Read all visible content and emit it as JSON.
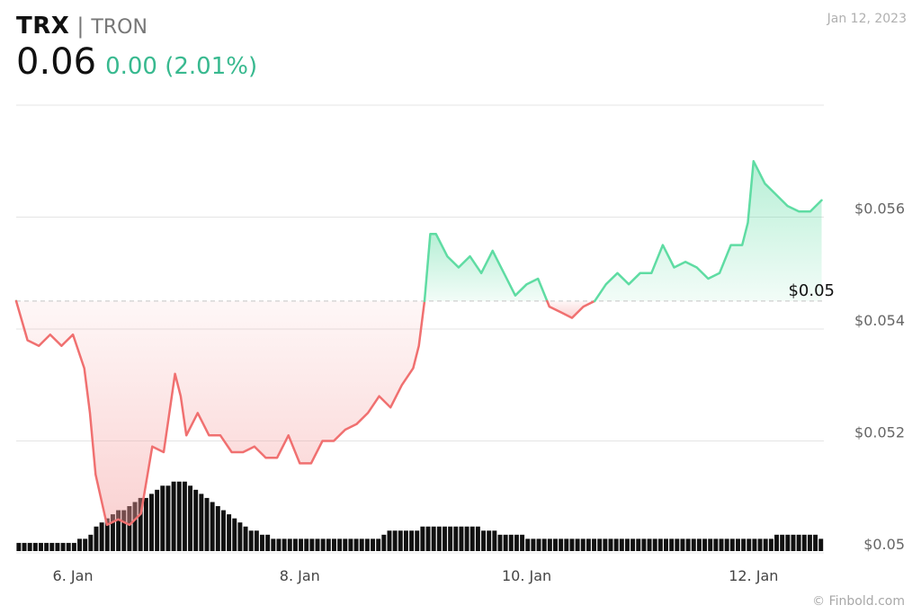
{
  "header": {
    "ticker": "TRX",
    "separator": "|",
    "name": "TRON",
    "price": "0.06",
    "change": "0.00 (2.01%)",
    "date": "Jan 12, 2023"
  },
  "footer": {
    "credit": "© Finbold.com"
  },
  "colors": {
    "up_line": "#5fdca3",
    "down_line": "#f07070",
    "up_fill": "#5fdca3",
    "down_fill": "#f49a9a",
    "volume": "#111111",
    "grid": "#e4e4e4"
  },
  "chart_data": {
    "type": "line",
    "title": "",
    "xlabel": "",
    "ylabel": "",
    "x_ticks": [
      "6. Jan",
      "8. Jan",
      "10. Jan",
      "12. Jan"
    ],
    "x_tick_values": [
      6,
      8,
      10,
      12
    ],
    "y_ticks": [
      "$0.056",
      "$0.054",
      "$0.052",
      "$0.05"
    ],
    "y_tick_values": [
      0.056,
      0.054,
      0.052,
      0.05
    ],
    "ylim": [
      0.05,
      0.058
    ],
    "reference_line": {
      "value": 0.0545,
      "label": "$0.05"
    },
    "grid": true,
    "series": [
      {
        "x": [
          5.5,
          5.6,
          5.7,
          5.8,
          5.9,
          6.0,
          6.1,
          6.15,
          6.2,
          6.3,
          6.4,
          6.5,
          6.6,
          6.7,
          6.8,
          6.9,
          6.95,
          7.0,
          7.1,
          7.15,
          7.2,
          7.3,
          7.4,
          7.5,
          7.6,
          7.7,
          7.8,
          7.9,
          8.0,
          8.1,
          8.2,
          8.3,
          8.4,
          8.5,
          8.6,
          8.7,
          8.8,
          8.9,
          9.0,
          9.05,
          9.1,
          9.15,
          9.2,
          9.3,
          9.4,
          9.5,
          9.6,
          9.7,
          9.8,
          9.9,
          10.0,
          10.1,
          10.2,
          10.3,
          10.4,
          10.5,
          10.6,
          10.7,
          10.8,
          10.9,
          11.0,
          11.1,
          11.2,
          11.3,
          11.4,
          11.5,
          11.6,
          11.7,
          11.8,
          11.9,
          11.95,
          12.0,
          12.05,
          12.1,
          12.2,
          12.3,
          12.4,
          12.5,
          12.6
        ],
        "y": [
          0.0545,
          0.0538,
          0.0537,
          0.0539,
          0.0537,
          0.0539,
          0.0533,
          0.0525,
          0.0514,
          0.0505,
          0.0506,
          0.0505,
          0.0507,
          0.0519,
          0.0518,
          0.0532,
          0.0528,
          0.0521,
          0.0525,
          0.0523,
          0.0521,
          0.0521,
          0.0518,
          0.0518,
          0.0519,
          0.0517,
          0.0517,
          0.0521,
          0.0516,
          0.0516,
          0.052,
          0.052,
          0.0522,
          0.0523,
          0.0525,
          0.0528,
          0.0526,
          0.053,
          0.0533,
          0.0537,
          0.0545,
          0.0557,
          0.0557,
          0.0553,
          0.0551,
          0.0553,
          0.055,
          0.0554,
          0.055,
          0.0546,
          0.0548,
          0.0549,
          0.0544,
          0.0543,
          0.0542,
          0.0544,
          0.0545,
          0.0548,
          0.055,
          0.0548,
          0.055,
          0.055,
          0.0555,
          0.0551,
          0.0552,
          0.0551,
          0.0549,
          0.055,
          0.0555,
          0.0555,
          0.0559,
          0.057,
          0.0568,
          0.0566,
          0.0564,
          0.0562,
          0.0561,
          0.0561,
          0.0563
        ]
      }
    ],
    "volume_bars": [
      2,
      2,
      2,
      2,
      2,
      2,
      2,
      2,
      2,
      2,
      2,
      3,
      3,
      4,
      6,
      7,
      8,
      9,
      10,
      10,
      11,
      12,
      13,
      13,
      14,
      15,
      16,
      16,
      17,
      17,
      17,
      16,
      15,
      14,
      13,
      12,
      11,
      10,
      9,
      8,
      7,
      6,
      5,
      5,
      4,
      4,
      3,
      3,
      3,
      3,
      3,
      3,
      3,
      3,
      3,
      3,
      3,
      3,
      3,
      3,
      3,
      3,
      3,
      3,
      3,
      3,
      4,
      5,
      5,
      5,
      5,
      5,
      5,
      6,
      6,
      6,
      6,
      6,
      6,
      6,
      6,
      6,
      6,
      6,
      5,
      5,
      5,
      4,
      4,
      4,
      4,
      4,
      3,
      3,
      3,
      3,
      3,
      3,
      3,
      3,
      3,
      3,
      3,
      3,
      3,
      3,
      3,
      3,
      3,
      3,
      3,
      3,
      3,
      3,
      3,
      3,
      3,
      3,
      3,
      3,
      3,
      3,
      3,
      3,
      3,
      3,
      3,
      3,
      3,
      3,
      3,
      3,
      3,
      3,
      3,
      3,
      3,
      4,
      4,
      4,
      4,
      4,
      4,
      4,
      4,
      3
    ]
  }
}
